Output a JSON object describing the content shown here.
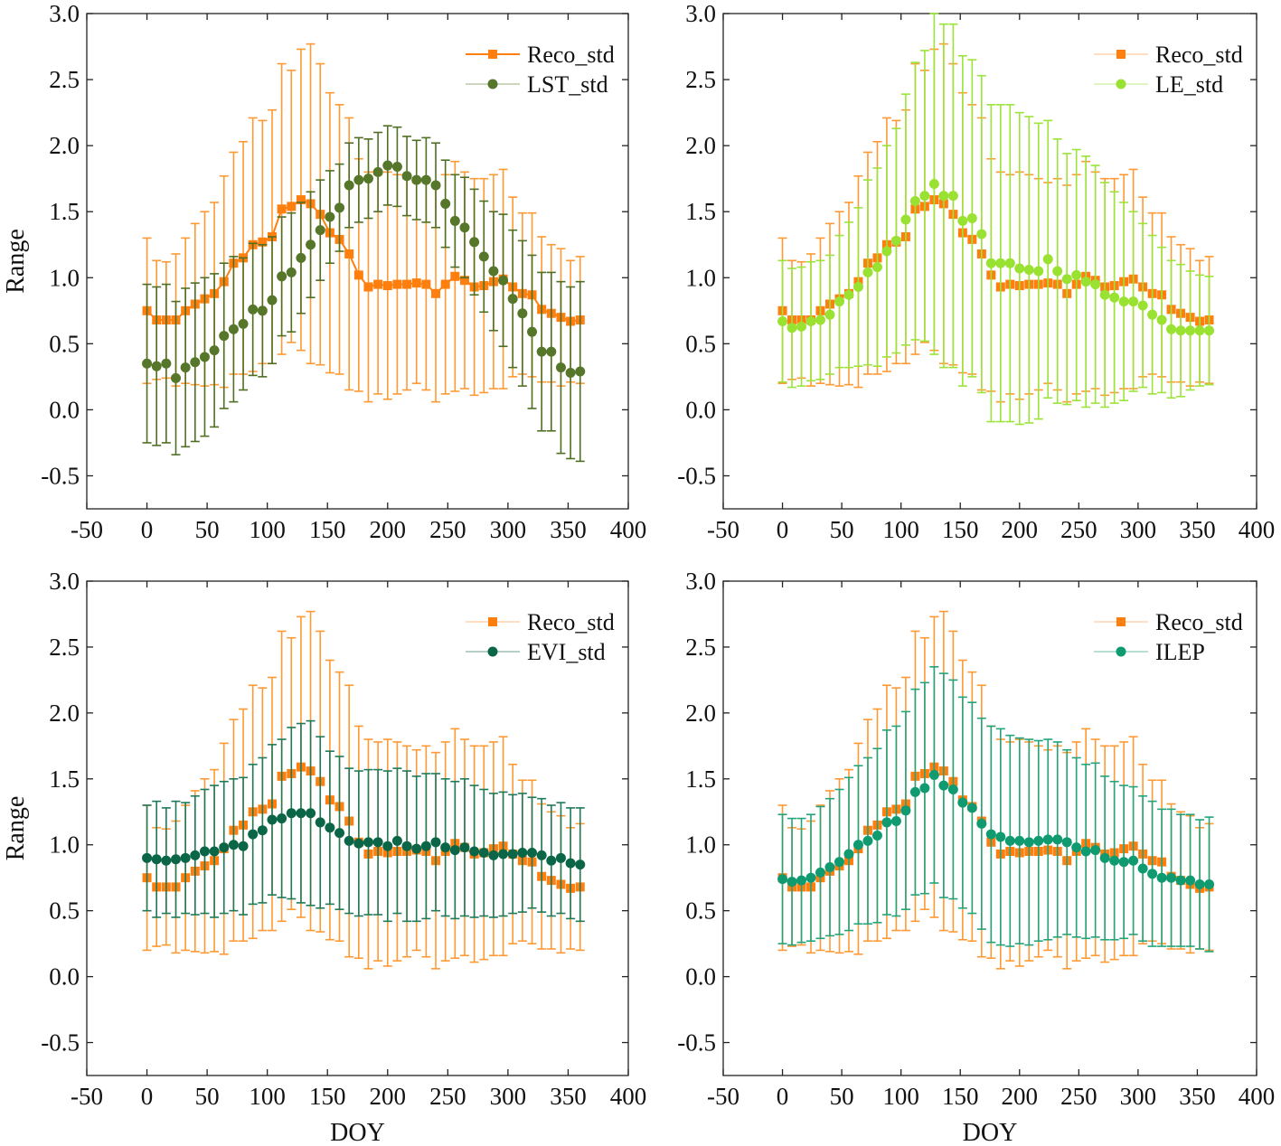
{
  "chart_data": {
    "type": "scatter",
    "layout": "2x2 panels with error bars",
    "x": [
      0,
      8,
      16,
      24,
      32,
      40,
      48,
      56,
      64,
      72,
      80,
      88,
      96,
      104,
      112,
      120,
      128,
      136,
      144,
      152,
      160,
      168,
      176,
      184,
      192,
      200,
      208,
      216,
      224,
      232,
      240,
      248,
      256,
      264,
      272,
      280,
      288,
      296,
      304,
      312,
      320,
      328,
      336,
      344,
      352,
      360
    ],
    "xlim": [
      -50,
      400
    ],
    "ylim": [
      -0.75,
      3.0
    ],
    "xticks": [
      "-50",
      "0",
      "50",
      "100",
      "150",
      "200",
      "250",
      "300",
      "350",
      "400"
    ],
    "xtick_values": [
      -50,
      0,
      50,
      100,
      150,
      200,
      250,
      300,
      350,
      400
    ],
    "yticks": [
      "-0.5",
      "0.0",
      "0.5",
      "1.0",
      "1.5",
      "2.0",
      "2.5",
      "3.0"
    ],
    "ytick_values": [
      -0.5,
      0,
      0.5,
      1.0,
      1.5,
      2.0,
      2.5,
      3.0
    ],
    "xlabel": "DOY",
    "ylabel": "Range",
    "reference": {
      "name": "Reco_std",
      "color": "#ff7f0e",
      "bar_color": "#ff9933",
      "values": [
        0.75,
        0.68,
        0.68,
        0.68,
        0.75,
        0.8,
        0.84,
        0.88,
        0.97,
        1.11,
        1.15,
        1.25,
        1.27,
        1.31,
        1.52,
        1.54,
        1.59,
        1.56,
        1.48,
        1.34,
        1.29,
        1.18,
        1.02,
        0.93,
        0.95,
        0.94,
        0.95,
        0.95,
        0.96,
        0.95,
        0.88,
        0.95,
        1.01,
        0.98,
        0.93,
        0.94,
        0.97,
        0.99,
        0.93,
        0.88,
        0.87,
        0.76,
        0.73,
        0.7,
        0.67,
        0.68
      ],
      "errors": [
        0.55,
        0.45,
        0.44,
        0.5,
        0.55,
        0.61,
        0.66,
        0.69,
        0.8,
        0.84,
        0.88,
        0.96,
        0.92,
        0.96,
        1.1,
        1.03,
        1.14,
        1.21,
        1.14,
        1.06,
        1.02,
        1.03,
        0.88,
        0.87,
        0.83,
        0.86,
        0.83,
        0.8,
        0.76,
        0.8,
        0.82,
        0.83,
        0.87,
        0.82,
        0.82,
        0.81,
        0.81,
        0.83,
        0.68,
        0.61,
        0.62,
        0.55,
        0.52,
        0.52,
        0.46,
        0.48
      ]
    },
    "panels": [
      {
        "legend": [
          "Reco_std",
          "LST_std"
        ],
        "legend_position": "top-right",
        "show_ylabel": true,
        "show_xlabel": false,
        "reco_line": true,
        "series": {
          "name": "LST_std",
          "color": "#56762a",
          "bar_color": "#4f6f22",
          "values": [
            0.35,
            0.33,
            0.35,
            0.24,
            0.32,
            0.36,
            0.4,
            0.45,
            0.56,
            0.61,
            0.65,
            0.76,
            0.75,
            0.83,
            1.01,
            1.04,
            1.15,
            1.25,
            1.36,
            1.46,
            1.53,
            1.7,
            1.74,
            1.75,
            1.8,
            1.85,
            1.84,
            1.77,
            1.74,
            1.74,
            1.7,
            1.56,
            1.43,
            1.38,
            1.27,
            1.16,
            1.05,
            0.98,
            0.84,
            0.73,
            0.59,
            0.44,
            0.44,
            0.32,
            0.28,
            0.29
          ],
          "errors": [
            0.6,
            0.6,
            0.6,
            0.58,
            0.6,
            0.6,
            0.6,
            0.58,
            0.55,
            0.55,
            0.5,
            0.5,
            0.5,
            0.48,
            0.45,
            0.45,
            0.42,
            0.4,
            0.38,
            0.35,
            0.33,
            0.32,
            0.32,
            0.3,
            0.3,
            0.3,
            0.3,
            0.3,
            0.3,
            0.32,
            0.32,
            0.33,
            0.35,
            0.38,
            0.4,
            0.42,
            0.45,
            0.5,
            0.52,
            0.55,
            0.58,
            0.6,
            0.6,
            0.65,
            0.65,
            0.68
          ]
        }
      },
      {
        "legend": [
          "Reco_std",
          "LE_std"
        ],
        "legend_position": "top-right",
        "show_ylabel": false,
        "show_xlabel": false,
        "reco_line": false,
        "series": {
          "name": "LE_std",
          "color": "#99e232",
          "bar_color": "#9be43a",
          "values": [
            0.67,
            0.62,
            0.63,
            0.67,
            0.68,
            0.72,
            0.82,
            0.87,
            0.93,
            1.04,
            1.08,
            1.2,
            1.28,
            1.44,
            1.58,
            1.62,
            1.71,
            1.62,
            1.62,
            1.43,
            1.45,
            1.33,
            1.11,
            1.11,
            1.11,
            1.07,
            1.06,
            1.05,
            1.14,
            1.05,
            0.99,
            1.02,
            0.97,
            0.95,
            0.87,
            0.85,
            0.82,
            0.82,
            0.79,
            0.72,
            0.68,
            0.61,
            0.6,
            0.6,
            0.6,
            0.6
          ],
          "errors": [
            0.46,
            0.45,
            0.45,
            0.45,
            0.45,
            0.45,
            0.5,
            0.55,
            0.6,
            0.7,
            0.75,
            0.8,
            0.85,
            0.95,
            1.05,
            1.1,
            1.29,
            1.3,
            1.3,
            1.25,
            1.2,
            1.2,
            1.2,
            1.2,
            1.2,
            1.18,
            1.16,
            1.12,
            1.05,
            1.0,
            0.95,
            0.95,
            0.95,
            0.9,
            0.85,
            0.8,
            0.75,
            0.68,
            0.62,
            0.6,
            0.55,
            0.52,
            0.5,
            0.45,
            0.42,
            0.41
          ]
        }
      },
      {
        "legend": [
          "Reco_std",
          "EVI_std"
        ],
        "legend_position": "top-right",
        "show_ylabel": true,
        "show_xlabel": true,
        "reco_line": false,
        "series": {
          "name": "EVI_std",
          "color": "#0b6647",
          "bar_color": "#1d7a5a",
          "values": [
            0.9,
            0.89,
            0.88,
            0.89,
            0.9,
            0.92,
            0.95,
            0.95,
            0.98,
            1.0,
            0.99,
            1.08,
            1.11,
            1.19,
            1.2,
            1.24,
            1.24,
            1.24,
            1.17,
            1.13,
            1.09,
            1.03,
            1.01,
            1.02,
            1.02,
            0.99,
            1.03,
            0.99,
            0.97,
            0.99,
            1.02,
            0.98,
            0.96,
            0.98,
            0.95,
            0.94,
            0.92,
            0.93,
            0.93,
            0.94,
            0.94,
            0.92,
            0.88,
            0.9,
            0.86,
            0.85
          ],
          "errors": [
            0.4,
            0.44,
            0.4,
            0.44,
            0.42,
            0.45,
            0.47,
            0.5,
            0.5,
            0.5,
            0.52,
            0.53,
            0.55,
            0.57,
            0.6,
            0.65,
            0.68,
            0.7,
            0.65,
            0.58,
            0.58,
            0.55,
            0.55,
            0.55,
            0.55,
            0.57,
            0.55,
            0.57,
            0.55,
            0.55,
            0.52,
            0.52,
            0.52,
            0.52,
            0.5,
            0.48,
            0.47,
            0.47,
            0.45,
            0.45,
            0.42,
            0.43,
            0.42,
            0.42,
            0.42,
            0.43
          ]
        }
      },
      {
        "legend": [
          "Reco_std",
          "ILEP"
        ],
        "legend_position": "top-right",
        "show_ylabel": false,
        "show_xlabel": true,
        "reco_line": false,
        "series": {
          "name": "ILEP",
          "color": "#0f9a70",
          "bar_color": "#22a47c",
          "values": [
            0.74,
            0.72,
            0.73,
            0.75,
            0.79,
            0.83,
            0.87,
            0.93,
            1.0,
            1.03,
            1.07,
            1.17,
            1.18,
            1.26,
            1.4,
            1.43,
            1.53,
            1.45,
            1.42,
            1.32,
            1.28,
            1.16,
            1.08,
            1.06,
            1.03,
            1.03,
            1.02,
            1.03,
            1.04,
            1.04,
            1.02,
            0.98,
            0.95,
            0.96,
            0.9,
            0.88,
            0.87,
            0.88,
            0.82,
            0.78,
            0.75,
            0.75,
            0.73,
            0.73,
            0.7,
            0.7
          ],
          "errors": [
            0.49,
            0.48,
            0.47,
            0.48,
            0.5,
            0.52,
            0.55,
            0.58,
            0.6,
            0.63,
            0.66,
            0.7,
            0.72,
            0.75,
            0.78,
            0.8,
            0.82,
            0.85,
            0.83,
            0.8,
            0.8,
            0.8,
            0.82,
            0.82,
            0.8,
            0.78,
            0.78,
            0.76,
            0.76,
            0.74,
            0.7,
            0.68,
            0.66,
            0.66,
            0.62,
            0.6,
            0.58,
            0.56,
            0.55,
            0.55,
            0.52,
            0.52,
            0.5,
            0.5,
            0.49,
            0.51
          ]
        }
      }
    ]
  }
}
